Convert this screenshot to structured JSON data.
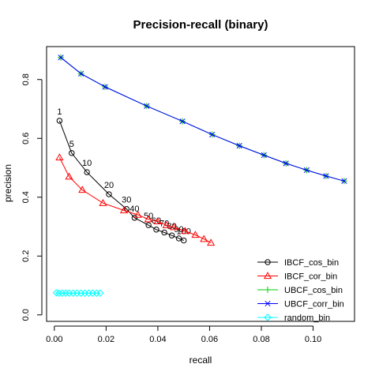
{
  "chart_data": {
    "type": "line",
    "title": "Precision-recall (binary)",
    "xlabel": "recall",
    "ylabel": "precision",
    "xlim": [
      -0.003,
      0.116
    ],
    "ylim": [
      -0.022,
      0.912
    ],
    "xticks": [
      0.0,
      0.02,
      0.04,
      0.06,
      0.08,
      0.1
    ],
    "xtick_labels": [
      "0.00",
      "0.02",
      "0.04",
      "0.06",
      "0.08",
      "0.10"
    ],
    "yticks": [
      0.0,
      0.2,
      0.4,
      0.6,
      0.8
    ],
    "ytick_labels": [
      "0.0",
      "0.2",
      "0.4",
      "0.6",
      "0.8"
    ],
    "grid": false,
    "legend_position": "bottom-right",
    "series": [
      {
        "name": "IBCF_cos_bin",
        "color": "#000000",
        "marker": "circle",
        "x": [
          0.002,
          0.0067,
          0.0126,
          0.0211,
          0.0279,
          0.031,
          0.0364,
          0.0394,
          0.0425,
          0.0454,
          0.0481,
          0.05
        ],
        "y": [
          0.66,
          0.55,
          0.485,
          0.41,
          0.36,
          0.33,
          0.305,
          0.29,
          0.28,
          0.27,
          0.26,
          0.253
        ],
        "point_labels": [
          "1",
          "5",
          "10",
          "20",
          "30",
          "40",
          "50",
          "60",
          "70",
          "80",
          "90",
          "100"
        ]
      },
      {
        "name": "IBCF_cor_bin",
        "color": "#ff0000",
        "marker": "triangle",
        "x": [
          0.002,
          0.0057,
          0.0108,
          0.0188,
          0.0269,
          0.0323,
          0.0363,
          0.0399,
          0.0433,
          0.0462,
          0.0505,
          0.0545,
          0.0578,
          0.0605
        ],
        "y": [
          0.535,
          0.47,
          0.425,
          0.38,
          0.355,
          0.34,
          0.325,
          0.318,
          0.305,
          0.298,
          0.285,
          0.272,
          0.258,
          0.245
        ]
      },
      {
        "name": "UBCF_cos_bin",
        "color": "#00cd00",
        "marker": "plus",
        "x": [
          0.0025,
          0.0103,
          0.0196,
          0.0357,
          0.0495,
          0.061,
          0.0715,
          0.081,
          0.0895,
          0.0975,
          0.105,
          0.112
        ],
        "y": [
          0.875,
          0.82,
          0.775,
          0.71,
          0.658,
          0.613,
          0.575,
          0.543,
          0.515,
          0.492,
          0.472,
          0.455
        ]
      },
      {
        "name": "UBCF_corr_bin",
        "color": "#0000ff",
        "marker": "cross",
        "x": [
          0.0025,
          0.0103,
          0.0196,
          0.0357,
          0.0495,
          0.061,
          0.0715,
          0.081,
          0.0895,
          0.0975,
          0.105,
          0.112
        ],
        "y": [
          0.875,
          0.82,
          0.775,
          0.71,
          0.658,
          0.613,
          0.575,
          0.543,
          0.515,
          0.492,
          0.472,
          0.455
        ]
      },
      {
        "name": "random_bin",
        "color": "#00ffff",
        "marker": "diamond",
        "x": [
          0.0008,
          0.0018,
          0.003,
          0.0044,
          0.0058,
          0.0073,
          0.0088,
          0.0103,
          0.0118,
          0.0133,
          0.0148,
          0.0163,
          0.0177
        ],
        "y": [
          0.075,
          0.074,
          0.074,
          0.074,
          0.074,
          0.074,
          0.074,
          0.074,
          0.074,
          0.074,
          0.074,
          0.074,
          0.074
        ]
      }
    ]
  }
}
